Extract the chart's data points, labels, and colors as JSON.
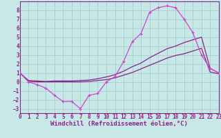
{
  "xlabel": "Windchill (Refroidissement éolien,°C)",
  "background_color": "#c8e8e8",
  "grid_color": "#a8cccc",
  "line_color1": "#cc44cc",
  "line_color2": "#882288",
  "xlim": [
    0,
    23
  ],
  "ylim": [
    -3.5,
    9.0
  ],
  "yticks": [
    -3,
    -2,
    -1,
    0,
    1,
    2,
    3,
    4,
    5,
    6,
    7,
    8
  ],
  "xticks": [
    0,
    1,
    2,
    3,
    4,
    5,
    6,
    7,
    8,
    9,
    10,
    11,
    12,
    13,
    14,
    15,
    16,
    17,
    18,
    19,
    20,
    21,
    22,
    23
  ],
  "s1_x": [
    0,
    1,
    2,
    3,
    4,
    5,
    6,
    7,
    8,
    9,
    10,
    11,
    12,
    13,
    14,
    15,
    16,
    17,
    18,
    19,
    20,
    21,
    22,
    23
  ],
  "s1_y": [
    1.0,
    0.0,
    -0.3,
    -0.7,
    -1.5,
    -2.2,
    -2.2,
    -3.0,
    -1.5,
    -1.3,
    0.0,
    0.6,
    2.3,
    4.5,
    5.4,
    7.8,
    8.3,
    8.5,
    8.3,
    7.0,
    5.5,
    3.0,
    1.5,
    1.0
  ],
  "s2_x": [
    0,
    1,
    2,
    3,
    4,
    5,
    6,
    7,
    8,
    9,
    10,
    11,
    12,
    13,
    14,
    15,
    16,
    17,
    18,
    19,
    20,
    21,
    22,
    23
  ],
  "s2_y": [
    1.0,
    0.15,
    0.1,
    0.05,
    0.1,
    0.1,
    0.1,
    0.15,
    0.2,
    0.35,
    0.55,
    0.8,
    1.2,
    1.7,
    2.1,
    2.7,
    3.2,
    3.7,
    4.0,
    4.4,
    4.7,
    5.0,
    1.5,
    1.0
  ],
  "s3_x": [
    0,
    1,
    2,
    3,
    4,
    5,
    6,
    7,
    8,
    9,
    10,
    11,
    12,
    13,
    14,
    15,
    16,
    17,
    18,
    19,
    20,
    21,
    22,
    23
  ],
  "s3_y": [
    1.0,
    0.05,
    0.0,
    0.0,
    0.0,
    0.0,
    0.0,
    0.0,
    0.05,
    0.15,
    0.25,
    0.45,
    0.75,
    1.05,
    1.45,
    1.85,
    2.25,
    2.65,
    2.95,
    3.15,
    3.45,
    3.75,
    1.1,
    0.9
  ],
  "font_size_ticks": 5.5,
  "font_size_xlabel": 6.5
}
